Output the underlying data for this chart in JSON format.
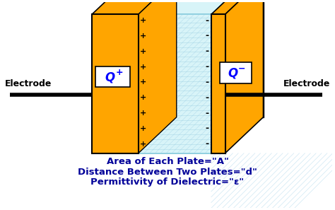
{
  "bg_color": "#ffffff",
  "plate_color": "#FFA500",
  "dielectric_color": "#D8F4F8",
  "dielectric_color2": "#C8ECC8",
  "dielectric_stroke": "#88CCDD",
  "plate_stroke": "#000000",
  "text_color": "#000000",
  "label_line1": "Area of Each Plate=\"A\"",
  "label_line2": "Distance Between Two Plates=\"d\"",
  "label_line3": "Permittivity of Dielectric=\"ε\"",
  "electrode_left": "Electrode",
  "electrode_right": "Electrode",
  "plus_signs": [
    "+",
    "+",
    "+",
    "+",
    "+",
    "+",
    "+",
    "+",
    "+"
  ],
  "minus_signs": [
    "-",
    "-",
    "-",
    "-",
    "-",
    "-",
    "-",
    "-",
    "-"
  ]
}
